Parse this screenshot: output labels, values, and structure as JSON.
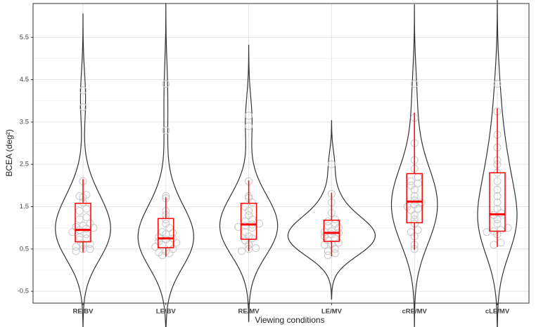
{
  "chart_data": {
    "type": "violin",
    "x_label": "Viewing conditions",
    "y_label": "BCEA (deg²)",
    "categories": [
      "RE/BV",
      "LE/BV",
      "RE/MV",
      "LE/MV",
      "cRE/MV",
      "cLE/MV"
    ],
    "points": [
      [
        0.45,
        0.5,
        0.5,
        0.55,
        0.6,
        0.62,
        0.72,
        0.75,
        0.78,
        0.85,
        0.9,
        0.95,
        0.98,
        1.0,
        1.02,
        1.05,
        1.1,
        1.2,
        1.25,
        1.4,
        1.45,
        1.6,
        1.72,
        1.75,
        1.78,
        2.1,
        3.85,
        4.25
      ],
      [
        0.35,
        0.4,
        0.42,
        0.45,
        0.5,
        0.55,
        0.6,
        0.62,
        0.65,
        0.68,
        0.72,
        0.75,
        0.78,
        0.85,
        0.88,
        0.9,
        1.0,
        1.1,
        1.2,
        1.3,
        1.4,
        1.7,
        1.75,
        3.3,
        4.4
      ],
      [
        0.45,
        0.5,
        0.52,
        0.6,
        0.7,
        0.75,
        0.8,
        0.9,
        1.0,
        1.02,
        1.05,
        1.08,
        1.1,
        1.15,
        1.2,
        1.3,
        1.4,
        1.5,
        1.6,
        1.7,
        1.75,
        2.1,
        3.4,
        3.65
      ],
      [
        0.35,
        0.4,
        0.45,
        0.5,
        0.6,
        0.62,
        0.65,
        0.7,
        0.75,
        0.8,
        0.85,
        0.88,
        0.9,
        0.92,
        1.0,
        1.05,
        1.1,
        1.15,
        1.2,
        1.35,
        1.6,
        1.8,
        2.5
      ],
      [
        0.5,
        0.6,
        0.8,
        0.9,
        0.95,
        1.1,
        1.2,
        1.3,
        1.42,
        1.45,
        1.5,
        1.55,
        1.6,
        1.65,
        1.75,
        1.9,
        2.0,
        2.05,
        2.1,
        2.2,
        2.4,
        2.6,
        3.0,
        3.6,
        4.4
      ],
      [
        0.6,
        0.65,
        0.85,
        0.9,
        0.92,
        0.95,
        1.0,
        1.1,
        1.2,
        1.3,
        1.35,
        1.45,
        1.6,
        1.75,
        1.9,
        2.1,
        2.3,
        2.5,
        2.6,
        2.9,
        3.2,
        3.75,
        4.4
      ]
    ],
    "box": {
      "whisker_low": [
        0.42,
        0.32,
        0.45,
        0.33,
        0.48,
        0.55
      ],
      "q1": [
        0.67,
        0.53,
        0.73,
        0.68,
        1.12,
        0.92
      ],
      "median": [
        0.95,
        0.75,
        1.08,
        0.88,
        1.62,
        1.32
      ],
      "q3": [
        1.58,
        1.22,
        1.58,
        1.18,
        2.28,
        2.3
      ],
      "whisker_high": [
        2.15,
        1.72,
        2.12,
        1.83,
        3.72,
        3.82
      ],
      "color": "#ff0000"
    },
    "violin_color": "#333333",
    "point_color": "#c8c8c8",
    "ylim": [
      -0.78,
      6.3
    ],
    "yticks": [
      -0.5,
      0.5,
      1.5,
      2.5,
      3.5,
      4.5,
      5.5
    ],
    "y_minor_ticks": [
      0,
      1,
      2,
      3,
      4,
      5
    ],
    "grid": true
  }
}
